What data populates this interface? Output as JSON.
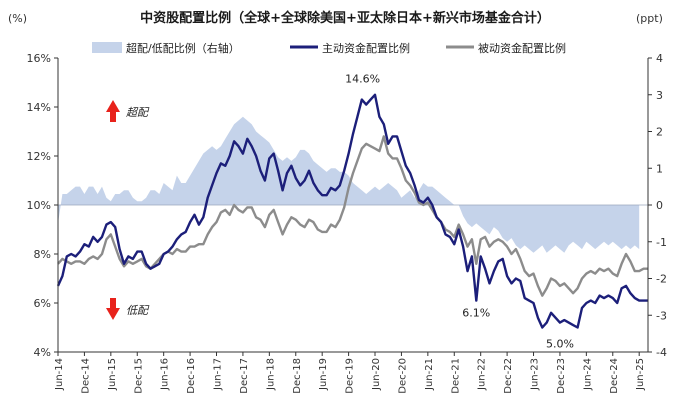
{
  "chart_data": {
    "type": "line",
    "title": "中资股配置比例（全球+全球除美国+亚太除日本+新兴市场基金合计）",
    "left_unit": "(%)",
    "right_unit": "(ppt)",
    "left_ylim": [
      4,
      16
    ],
    "left_yticks": [
      "4%",
      "6%",
      "8%",
      "10%",
      "12%",
      "14%",
      "16%"
    ],
    "right_ylim": [
      -4,
      4
    ],
    "right_yticks": [
      "-4",
      "-3",
      "-2",
      "-1",
      "0",
      "1",
      "2",
      "3",
      "4"
    ],
    "x_ticks": [
      "Jun-14",
      "Dec-14",
      "Jun-15",
      "Dec-15",
      "Jun-16",
      "Dec-16",
      "Jun-17",
      "Dec-17",
      "Jun-18",
      "Dec-18",
      "Jun-19",
      "Dec-19",
      "Jun-20",
      "Dec-20",
      "Jun-21",
      "Dec-21",
      "Jun-22",
      "Dec-22",
      "Jun-23",
      "Dec-23",
      "Jun-24",
      "Dec-24",
      "Jun-25"
    ],
    "grid": false,
    "legend_position": "top",
    "colors": {
      "area": "#c5d3ea",
      "active": "#1c1f7a",
      "passive": "#8c8c8c",
      "arrow": "#e8221b"
    },
    "series": [
      {
        "name": "超配/低配比例（右轴）",
        "kind": "area",
        "axis": "right",
        "values": [
          -0.5,
          0.3,
          0.3,
          0.4,
          0.5,
          0.5,
          0.3,
          0.5,
          0.5,
          0.3,
          0.5,
          0.2,
          0.1,
          0.3,
          0.3,
          0.4,
          0.4,
          0.2,
          0.1,
          0.1,
          0.2,
          0.4,
          0.4,
          0.3,
          0.6,
          0.5,
          0.4,
          0.8,
          0.6,
          0.6,
          0.8,
          1.0,
          1.2,
          1.4,
          1.5,
          1.6,
          1.5,
          1.6,
          1.8,
          2.0,
          2.2,
          2.3,
          2.4,
          2.3,
          2.2,
          2.0,
          1.9,
          1.8,
          1.7,
          1.5,
          1.3,
          1.2,
          1.3,
          1.2,
          1.3,
          1.5,
          1.5,
          1.4,
          1.2,
          1.1,
          1.0,
          0.9,
          1.0,
          1.0,
          0.9,
          0.9,
          0.8,
          0.6,
          0.5,
          0.4,
          0.3,
          0.4,
          0.5,
          0.4,
          0.5,
          0.6,
          0.5,
          0.4,
          0.2,
          0.3,
          0.4,
          0.2,
          0.4,
          0.6,
          0.5,
          0.5,
          0.4,
          0.3,
          0.2,
          0.1,
          0.0,
          0.0,
          -0.3,
          -0.5,
          -0.6,
          -0.5,
          -0.6,
          -0.7,
          -0.8,
          -0.6,
          -0.7,
          -0.9,
          -1.0,
          -0.9,
          -1.1,
          -1.2,
          -1.1,
          -1.2,
          -1.3,
          -1.2,
          -1.1,
          -1.3,
          -1.2,
          -1.1,
          -1.2,
          -1.3,
          -1.1,
          -1.0,
          -1.1,
          -1.2,
          -1.0,
          -1.1,
          -1.2,
          -1.1,
          -1.0,
          -1.1,
          -1.0,
          -1.1,
          -1.2,
          -1.1,
          -1.2,
          -1.1,
          -1.2
        ]
      },
      {
        "name": "主动资金配置比例",
        "kind": "line",
        "axis": "left",
        "values": [
          6.7,
          7.1,
          7.9,
          8.0,
          7.9,
          8.1,
          8.4,
          8.3,
          8.7,
          8.5,
          8.7,
          9.2,
          9.3,
          9.1,
          8.2,
          7.6,
          7.9,
          7.8,
          8.1,
          8.1,
          7.6,
          7.4,
          7.5,
          7.6,
          8.0,
          8.1,
          8.3,
          8.6,
          8.8,
          8.9,
          9.3,
          9.6,
          9.2,
          9.5,
          10.3,
          10.8,
          11.3,
          11.7,
          11.6,
          12.0,
          12.6,
          12.4,
          12.1,
          12.7,
          12.4,
          12.0,
          11.4,
          11.0,
          11.9,
          12.1,
          11.4,
          10.6,
          11.3,
          11.6,
          11.1,
          10.8,
          11.0,
          11.4,
          10.9,
          10.6,
          10.4,
          10.4,
          10.7,
          10.6,
          10.8,
          11.4,
          12.1,
          12.9,
          13.6,
          14.3,
          14.1,
          14.3,
          14.5,
          13.6,
          13.3,
          12.5,
          12.8,
          12.8,
          12.2,
          11.6,
          11.3,
          10.8,
          10.2,
          10.1,
          10.3,
          10.0,
          9.5,
          9.3,
          8.8,
          8.7,
          8.4,
          9.0,
          8.3,
          7.3,
          7.9,
          6.1,
          7.9,
          7.4,
          6.8,
          7.3,
          7.7,
          7.8,
          7.1,
          6.8,
          7.0,
          6.9,
          6.2,
          6.1,
          6.0,
          5.4,
          5.0,
          5.2,
          5.6,
          5.4,
          5.2,
          5.3,
          5.2,
          5.1,
          5.0,
          5.8,
          6.0,
          6.1,
          6.0,
          6.3,
          6.2,
          6.3,
          6.2,
          6.0,
          6.6,
          6.7,
          6.4,
          6.2,
          6.1,
          6.1,
          6.1
        ]
      },
      {
        "name": "被动资金配置比例",
        "kind": "line",
        "axis": "left",
        "values": [
          7.6,
          7.8,
          7.7,
          7.6,
          7.7,
          7.7,
          7.6,
          7.8,
          7.9,
          7.8,
          8.0,
          8.6,
          8.8,
          8.3,
          7.8,
          7.5,
          7.7,
          7.6,
          7.7,
          7.8,
          7.5,
          7.4,
          7.6,
          7.8,
          8.0,
          8.1,
          8.0,
          8.2,
          8.1,
          8.1,
          8.3,
          8.3,
          8.4,
          8.4,
          8.8,
          9.1,
          9.3,
          9.7,
          9.8,
          9.6,
          10.0,
          9.8,
          9.7,
          9.9,
          9.9,
          9.5,
          9.4,
          9.1,
          9.6,
          9.8,
          9.3,
          8.8,
          9.2,
          9.5,
          9.4,
          9.2,
          9.1,
          9.4,
          9.3,
          9.0,
          8.9,
          8.9,
          9.2,
          9.1,
          9.4,
          9.9,
          10.7,
          11.3,
          11.8,
          12.3,
          12.5,
          12.4,
          12.3,
          12.2,
          12.8,
          12.1,
          11.9,
          11.9,
          11.5,
          11.0,
          10.8,
          10.5,
          10.1,
          10.0,
          10.1,
          9.8,
          9.5,
          9.3,
          9.0,
          8.9,
          8.7,
          9.2,
          8.8,
          8.3,
          8.6,
          7.6,
          8.6,
          8.7,
          8.3,
          8.5,
          8.6,
          8.5,
          8.3,
          8.0,
          8.2,
          7.8,
          7.3,
          7.1,
          7.2,
          6.7,
          6.3,
          6.6,
          7.0,
          6.9,
          6.7,
          6.8,
          6.6,
          6.4,
          6.6,
          7.0,
          7.2,
          7.3,
          7.2,
          7.4,
          7.3,
          7.4,
          7.2,
          7.1,
          7.6,
          8.0,
          7.7,
          7.3,
          7.3,
          7.4,
          7.4
        ]
      }
    ],
    "annotations": [
      {
        "text": "14.6%",
        "x_index": 71,
        "y": 14.6
      },
      {
        "text": "6.1%",
        "x_index": 95,
        "y": 6.1
      },
      {
        "text": "5.0%",
        "x_index": 114,
        "y": 5.0
      }
    ],
    "markers": [
      {
        "label": "超配",
        "direction": "up"
      },
      {
        "label": "低配",
        "direction": "down"
      }
    ]
  }
}
